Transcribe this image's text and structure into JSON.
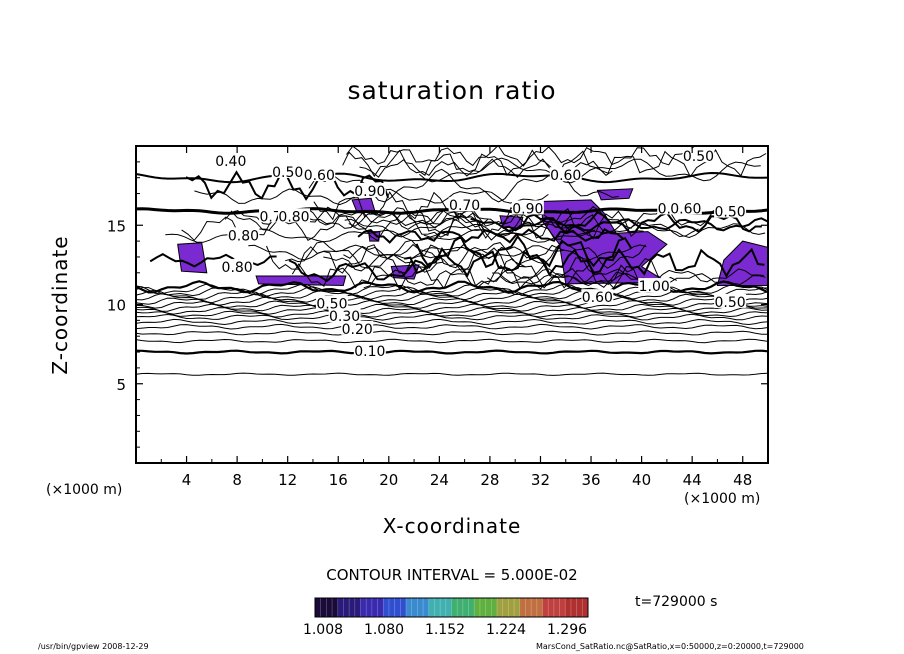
{
  "title": "saturation ratio",
  "chart_data": {
    "type": "contour",
    "title": "saturation ratio",
    "xlabel": "X-coordinate",
    "ylabel": "Z-coordinate",
    "x_unit": "(×1000 m)",
    "xlim": [
      0,
      50
    ],
    "ylim": [
      0,
      20
    ],
    "x_ticks": [
      "4",
      "8",
      "12",
      "16",
      "20",
      "24",
      "28",
      "32",
      "36",
      "40",
      "44",
      "48"
    ],
    "y_ticks": [
      "5",
      "10",
      "15"
    ],
    "contour_interval": "CONTOUR INTERVAL = 5.000E-02",
    "contour_labels": [
      {
        "text": "0.10",
        "x": 18.5,
        "z": 7.0
      },
      {
        "text": "0.20",
        "x": 17.5,
        "z": 8.4
      },
      {
        "text": "0.30",
        "x": 16.5,
        "z": 9.2
      },
      {
        "text": "0.50",
        "x": 15.5,
        "z": 10.0
      },
      {
        "text": "0.60",
        "x": 36.5,
        "z": 10.4
      },
      {
        "text": "0.50",
        "x": 47.0,
        "z": 10.1
      },
      {
        "text": "1.00",
        "x": 41.0,
        "z": 11.1
      },
      {
        "text": "0.40",
        "x": 7.5,
        "z": 19.0
      },
      {
        "text": "0.50",
        "x": 12.0,
        "z": 18.3
      },
      {
        "text": "0.60",
        "x": 14.5,
        "z": 18.1
      },
      {
        "text": "0.90",
        "x": 18.5,
        "z": 17.1
      },
      {
        "text": "0.50",
        "x": 44.5,
        "z": 19.3
      },
      {
        "text": "0.60",
        "x": 34.0,
        "z": 18.1
      },
      {
        "text": "0.90",
        "x": 42.5,
        "z": 16.0
      },
      {
        "text": "0.60",
        "x": 43.5,
        "z": 16.0
      },
      {
        "text": "0.50",
        "x": 47.0,
        "z": 15.8
      },
      {
        "text": "0.70",
        "x": 26.0,
        "z": 16.2
      },
      {
        "text": "0.90",
        "x": 31.0,
        "z": 16.0
      },
      {
        "text": "0.70",
        "x": 11.0,
        "z": 15.5
      },
      {
        "text": "0.80",
        "x": 12.5,
        "z": 15.5
      },
      {
        "text": "0.80",
        "x": 8.5,
        "z": 14.3
      },
      {
        "text": "0.80",
        "x": 8.0,
        "z": 12.3
      }
    ],
    "colorbar": {
      "labels": [
        "1.008",
        "1.080",
        "1.152",
        "1.224",
        "1.296"
      ],
      "colors": [
        "#1a0a3a",
        "#2a1a7a",
        "#3a2ab0",
        "#2f4fd0",
        "#3a8ad0",
        "#40b0b0",
        "#40b070",
        "#60b040",
        "#a0a040",
        "#c07040",
        "#c04040",
        "#b03030"
      ]
    },
    "saturated_color": "#7a2ad0"
  },
  "time_label": "t=729000  s",
  "footer_left": "/usr/bin/gpview   2008-12-29",
  "footer_right": "MarsCond_SatRatio.nc@SatRatio,x=0:50000,z=0:20000,t=729000"
}
